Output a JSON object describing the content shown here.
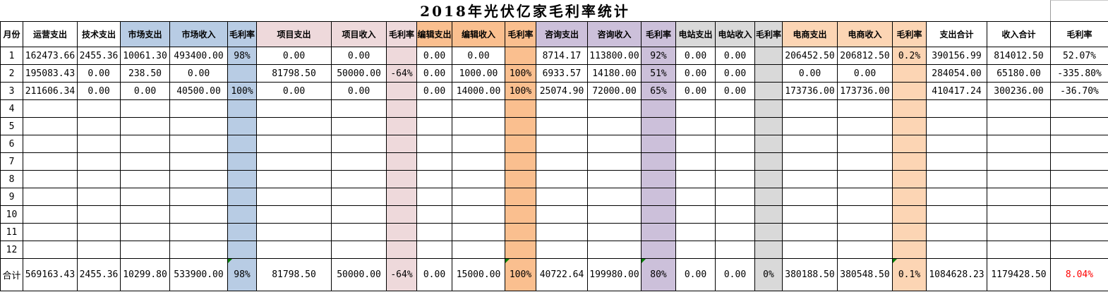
{
  "title": "2018年光伏亿家毛利率统计",
  "colors": {
    "plain": "#FFFFFF",
    "blue": "#B8CCE4",
    "pink": "#EED9DB",
    "orange": "#FABF8F",
    "purple": "#CCC0DA",
    "gray": "#D9D9D9",
    "lt_orange": "#FCD5B4",
    "error_flag": "#008000",
    "total_margin_text": "#FF0000",
    "grid_border": "#000000"
  },
  "columns": [
    {
      "label": "月份",
      "group": "plain"
    },
    {
      "label": "运营支出",
      "group": "plain"
    },
    {
      "label": "技术支出",
      "group": "plain"
    },
    {
      "label": "市场支出",
      "group": "blue"
    },
    {
      "label": "市场收入",
      "group": "blue"
    },
    {
      "label": "毛利率",
      "group": "blue"
    },
    {
      "label": "项目支出",
      "group": "pink"
    },
    {
      "label": "项目收入",
      "group": "pink"
    },
    {
      "label": "毛利率",
      "group": "pink"
    },
    {
      "label": "编辑支出",
      "group": "orange"
    },
    {
      "label": "编辑收入",
      "group": "orange"
    },
    {
      "label": "毛利率",
      "group": "orange"
    },
    {
      "label": "咨询支出",
      "group": "purple"
    },
    {
      "label": "咨询收入",
      "group": "purple"
    },
    {
      "label": "毛利率",
      "group": "purple"
    },
    {
      "label": "电站支出",
      "group": "gray"
    },
    {
      "label": "电站收入",
      "group": "gray"
    },
    {
      "label": "毛利率",
      "group": "gray"
    },
    {
      "label": "电商支出",
      "group": "lt_orange"
    },
    {
      "label": "电商收入",
      "group": "lt_orange"
    },
    {
      "label": "毛利率",
      "group": "lt_orange"
    },
    {
      "label": "支出合计",
      "group": "plain"
    },
    {
      "label": "收入合计",
      "group": "plain"
    },
    {
      "label": "毛利率",
      "group": "plain"
    }
  ],
  "body_rows": [
    [
      "1",
      "162473.66",
      "2455.36",
      "10061.30",
      "493400.00",
      "98%",
      "0.00",
      "0.00",
      "",
      "0.00",
      "0.00",
      "",
      "8714.17",
      "113800.00",
      "92%",
      "0.00",
      "0.00",
      "",
      "206452.50",
      "206812.50",
      "0.2%",
      "390156.99",
      "814012.50",
      "52.07%"
    ],
    [
      "2",
      "195083.43",
      "0.00",
      "238.50",
      "0.00",
      "",
      "81798.50",
      "50000.00",
      "-64%",
      "0.00",
      "1000.00",
      "100%",
      "6933.57",
      "14180.00",
      "51%",
      "0.00",
      "0.00",
      "",
      "0.00",
      "0.00",
      "",
      "284054.00",
      "65180.00",
      "-335.80%"
    ],
    [
      "3",
      "211606.34",
      "0.00",
      "0.00",
      "40500.00",
      "100%",
      "0.00",
      "0.00",
      "",
      "0.00",
      "14000.00",
      "100%",
      "25074.90",
      "72000.00",
      "65%",
      "0.00",
      "0.00",
      "",
      "173736.00",
      "173736.00",
      "",
      "410417.24",
      "300236.00",
      "-36.70%"
    ],
    [
      "4",
      "",
      "",
      "",
      "",
      "",
      "",
      "",
      "",
      "",
      "",
      "",
      "",
      "",
      "",
      "",
      "",
      "",
      "",
      "",
      "",
      "",
      "",
      ""
    ],
    [
      "5",
      "",
      "",
      "",
      "",
      "",
      "",
      "",
      "",
      "",
      "",
      "",
      "",
      "",
      "",
      "",
      "",
      "",
      "",
      "",
      "",
      "",
      "",
      ""
    ],
    [
      "6",
      "",
      "",
      "",
      "",
      "",
      "",
      "",
      "",
      "",
      "",
      "",
      "",
      "",
      "",
      "",
      "",
      "",
      "",
      "",
      "",
      "",
      "",
      ""
    ],
    [
      "7",
      "",
      "",
      "",
      "",
      "",
      "",
      "",
      "",
      "",
      "",
      "",
      "",
      "",
      "",
      "",
      "",
      "",
      "",
      "",
      "",
      "",
      "",
      ""
    ],
    [
      "8",
      "",
      "",
      "",
      "",
      "",
      "",
      "",
      "",
      "",
      "",
      "",
      "",
      "",
      "",
      "",
      "",
      "",
      "",
      "",
      "",
      "",
      "",
      ""
    ],
    [
      "9",
      "",
      "",
      "",
      "",
      "",
      "",
      "",
      "",
      "",
      "",
      "",
      "",
      "",
      "",
      "",
      "",
      "",
      "",
      "",
      "",
      "",
      "",
      ""
    ],
    [
      "10",
      "",
      "",
      "",
      "",
      "",
      "",
      "",
      "",
      "",
      "",
      "",
      "",
      "",
      "",
      "",
      "",
      "",
      "",
      "",
      "",
      "",
      "",
      ""
    ],
    [
      "11",
      "",
      "",
      "",
      "",
      "",
      "",
      "",
      "",
      "",
      "",
      "",
      "",
      "",
      "",
      "",
      "",
      "",
      "",
      "",
      "",
      "",
      "",
      ""
    ],
    [
      "12",
      "",
      "",
      "",
      "",
      "",
      "",
      "",
      "",
      "",
      "",
      "",
      "",
      "",
      "",
      "",
      "",
      "",
      "",
      "",
      "",
      "",
      "",
      ""
    ]
  ],
  "total_row": [
    "合计",
    "569163.43",
    "2455.36",
    "10299.80",
    "533900.00",
    "98%",
    "81798.50",
    "50000.00",
    "-64%",
    "0.00",
    "15000.00",
    "100%",
    "40722.64",
    "199980.00",
    "80%",
    "0.00",
    "0.00",
    "0%",
    "380188.50",
    "380548.50",
    "0.1%",
    "1084628.23",
    "1179428.50",
    "8.04%"
  ],
  "total_error_flag_cols": [
    5,
    11,
    14,
    20
  ],
  "total_red_col": 23
}
